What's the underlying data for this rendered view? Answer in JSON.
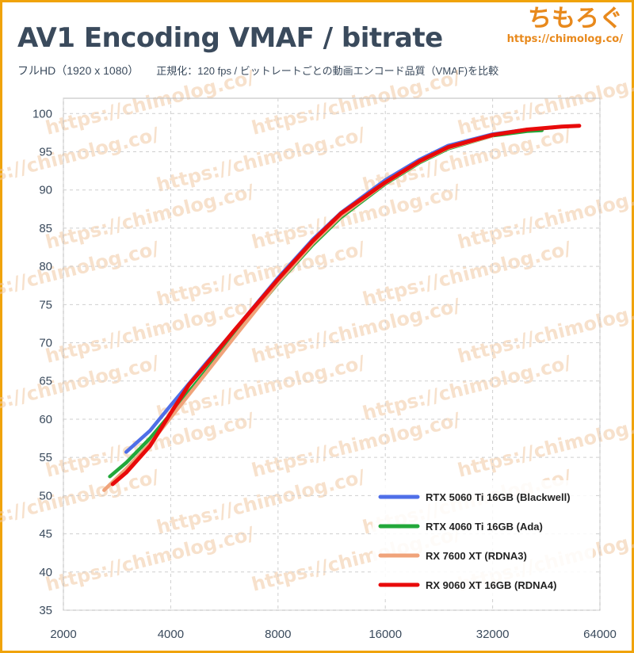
{
  "header": {
    "title": "AV1 Encoding VMAF / bitrate",
    "subtitle": "フルHD（1920 x 1080）",
    "subtitle_note": "正規化：120 fps / ビットレートごとの動画エンコード品質（VMAF)を比較"
  },
  "brand": {
    "name": "ちもろぐ",
    "url": "https://chimolog.co/"
  },
  "watermark_text": "https://chimolog.co/",
  "chart_data": {
    "type": "line",
    "title": "AV1 Encoding VMAF / bitrate",
    "xlabel": "",
    "ylabel": "",
    "x_scale": "log2",
    "xlim": [
      2000,
      64000
    ],
    "ylim": [
      35,
      102
    ],
    "x_ticks": [
      2000,
      4000,
      8000,
      16000,
      32000,
      64000
    ],
    "y_ticks": [
      35,
      40,
      45,
      50,
      55,
      60,
      65,
      70,
      75,
      80,
      85,
      90,
      95,
      100
    ],
    "grid": true,
    "legend_position": "bottom-right",
    "series": [
      {
        "name": "RTX 5060 Ti 16GB (Blackwell)",
        "color": "#4f6fe8",
        "points": [
          [
            3000,
            55.7
          ],
          [
            3500,
            58.5
          ],
          [
            4000,
            61.8
          ],
          [
            5000,
            67.2
          ],
          [
            6000,
            71.5
          ],
          [
            8000,
            78.5
          ],
          [
            10000,
            83.5
          ],
          [
            12000,
            87.0
          ],
          [
            16000,
            91.3
          ],
          [
            20000,
            94.0
          ],
          [
            24000,
            95.8
          ],
          [
            32000,
            97.3
          ],
          [
            40000,
            97.9
          ],
          [
            48000,
            98.2
          ]
        ]
      },
      {
        "name": "RTX 4060 Ti 16GB (Ada)",
        "color": "#22a83a",
        "points": [
          [
            2700,
            52.5
          ],
          [
            3000,
            54.3
          ],
          [
            3500,
            57.5
          ],
          [
            4000,
            60.7
          ],
          [
            5000,
            66.2
          ],
          [
            6000,
            70.8
          ],
          [
            8000,
            77.8
          ],
          [
            10000,
            82.8
          ],
          [
            12000,
            86.4
          ],
          [
            16000,
            90.8
          ],
          [
            20000,
            93.6
          ],
          [
            24000,
            95.4
          ],
          [
            32000,
            97.1
          ],
          [
            40000,
            97.7
          ],
          [
            44000,
            97.8
          ]
        ]
      },
      {
        "name": "RX 7600 XT (RDNA3)",
        "color": "#f0a37a",
        "points": [
          [
            2600,
            50.7
          ],
          [
            3000,
            53.5
          ],
          [
            3500,
            56.8
          ],
          [
            4000,
            60.2
          ],
          [
            5000,
            65.9
          ],
          [
            6000,
            70.6
          ],
          [
            8000,
            77.9
          ],
          [
            10000,
            83.0
          ],
          [
            12000,
            86.6
          ],
          [
            16000,
            90.9
          ],
          [
            20000,
            93.7
          ],
          [
            24000,
            95.5
          ],
          [
            32000,
            97.1
          ]
        ]
      },
      {
        "name": "RX 9060 XT 16GB (RDNA4)",
        "color": "#e80a0a",
        "points": [
          [
            2750,
            51.5
          ],
          [
            3000,
            53.0
          ],
          [
            3500,
            56.5
          ],
          [
            4000,
            60.8
          ],
          [
            4500,
            64.5
          ],
          [
            5000,
            67.0
          ],
          [
            6000,
            71.5
          ],
          [
            8000,
            78.3
          ],
          [
            10000,
            83.3
          ],
          [
            12000,
            86.9
          ],
          [
            16000,
            91.0
          ],
          [
            20000,
            93.8
          ],
          [
            24000,
            95.6
          ],
          [
            32000,
            97.2
          ],
          [
            40000,
            97.9
          ],
          [
            50000,
            98.3
          ],
          [
            56000,
            98.4
          ]
        ]
      }
    ]
  }
}
